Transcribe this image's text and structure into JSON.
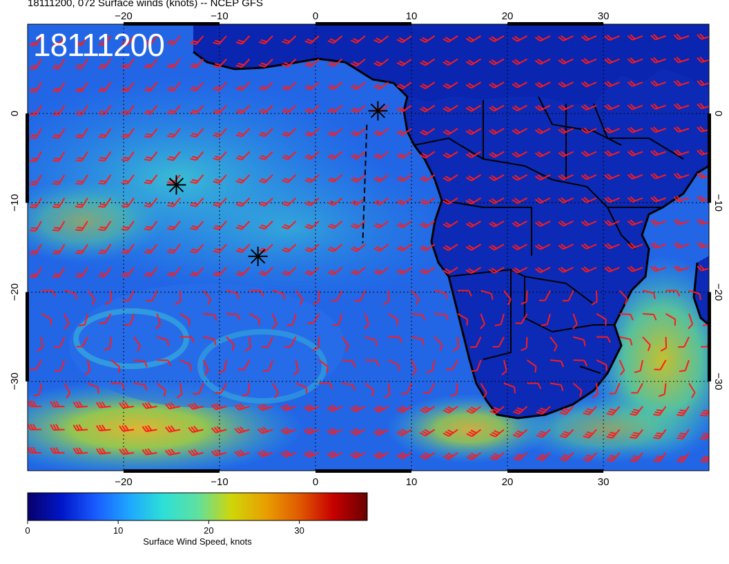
{
  "title": "18111200, 072 Surface winds (knots) -- NCEP GFS",
  "stamp": "18111200",
  "map": {
    "lon_range": [
      -30,
      41
    ],
    "lat_range": [
      -40,
      10
    ],
    "lon_ticks": [
      -20,
      -10,
      0,
      10,
      20,
      30
    ],
    "lon_tick_labels": [
      "−20",
      "−10",
      "0",
      "10",
      "20",
      "30"
    ],
    "lat_ticks": [
      0,
      -10,
      -20,
      -30
    ],
    "lat_tick_labels": [
      "0",
      "−10",
      "−20",
      "−30"
    ],
    "grid": true,
    "colors": {
      "ocean_base": "#1f4fe0",
      "land_base": "#0a22a8",
      "coastline": "#000000",
      "barb": "#ff1a1a",
      "marker": "#000000"
    },
    "markers": [
      {
        "name": "star-marker",
        "lon": -14.5,
        "lat": -8.0
      },
      {
        "name": "star-marker",
        "lon": -6.0,
        "lat": -16.0
      },
      {
        "name": "star-marker",
        "lon": 6.5,
        "lat": 0.3
      }
    ]
  },
  "colorbar": {
    "min": 0,
    "max": 37.5,
    "ticks": [
      0,
      10,
      20,
      30
    ],
    "tick_labels": [
      "0",
      "10",
      "20",
      "30"
    ],
    "label": "Surface Wind Speed, knots",
    "stops": [
      "#08006a",
      "#0016c8",
      "#1a5bff",
      "#1ea7ff",
      "#2de0d6",
      "#5ee0a0",
      "#cfd60a",
      "#e8a000",
      "#e05a00",
      "#c60000",
      "#6a0000"
    ]
  }
}
